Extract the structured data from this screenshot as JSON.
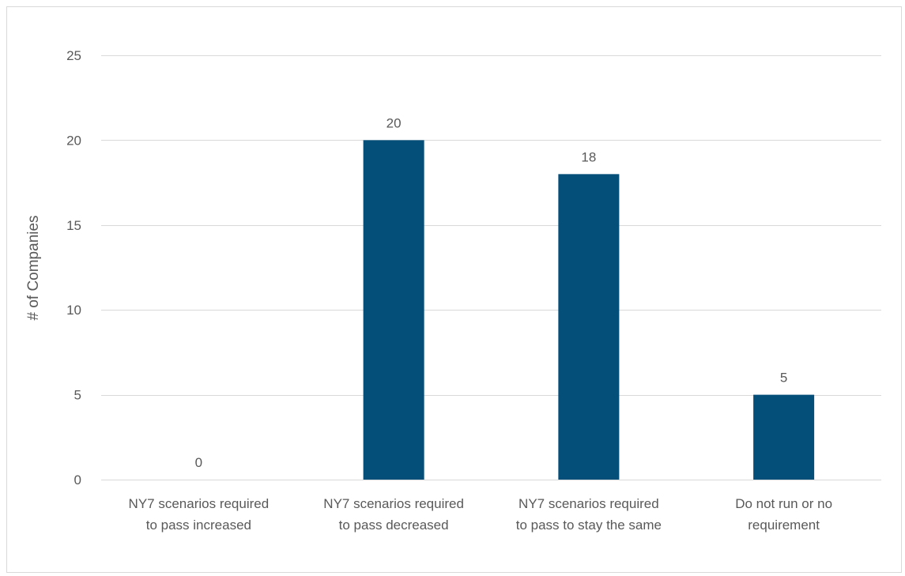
{
  "chart_data": {
    "type": "bar",
    "title": "",
    "xlabel": "",
    "ylabel": "# of Companies",
    "categories": [
      [
        "NY7 scenarios required",
        "to pass increased"
      ],
      [
        "NY7 scenarios required",
        "to pass decreased"
      ],
      [
        "NY7 scenarios required",
        "to pass to stay the same"
      ],
      [
        "Do not run or no",
        "requirement"
      ]
    ],
    "values": [
      0,
      20,
      18,
      5
    ],
    "data_labels": [
      "0",
      "20",
      "18",
      "5"
    ],
    "ylim": [
      0,
      25
    ],
    "yticks": [
      0,
      5,
      10,
      15,
      20,
      25
    ],
    "ytick_labels": [
      "0",
      "5",
      "10",
      "15",
      "20",
      "25"
    ],
    "grid": true,
    "legend": "none",
    "bar_color": "#044e7a"
  }
}
